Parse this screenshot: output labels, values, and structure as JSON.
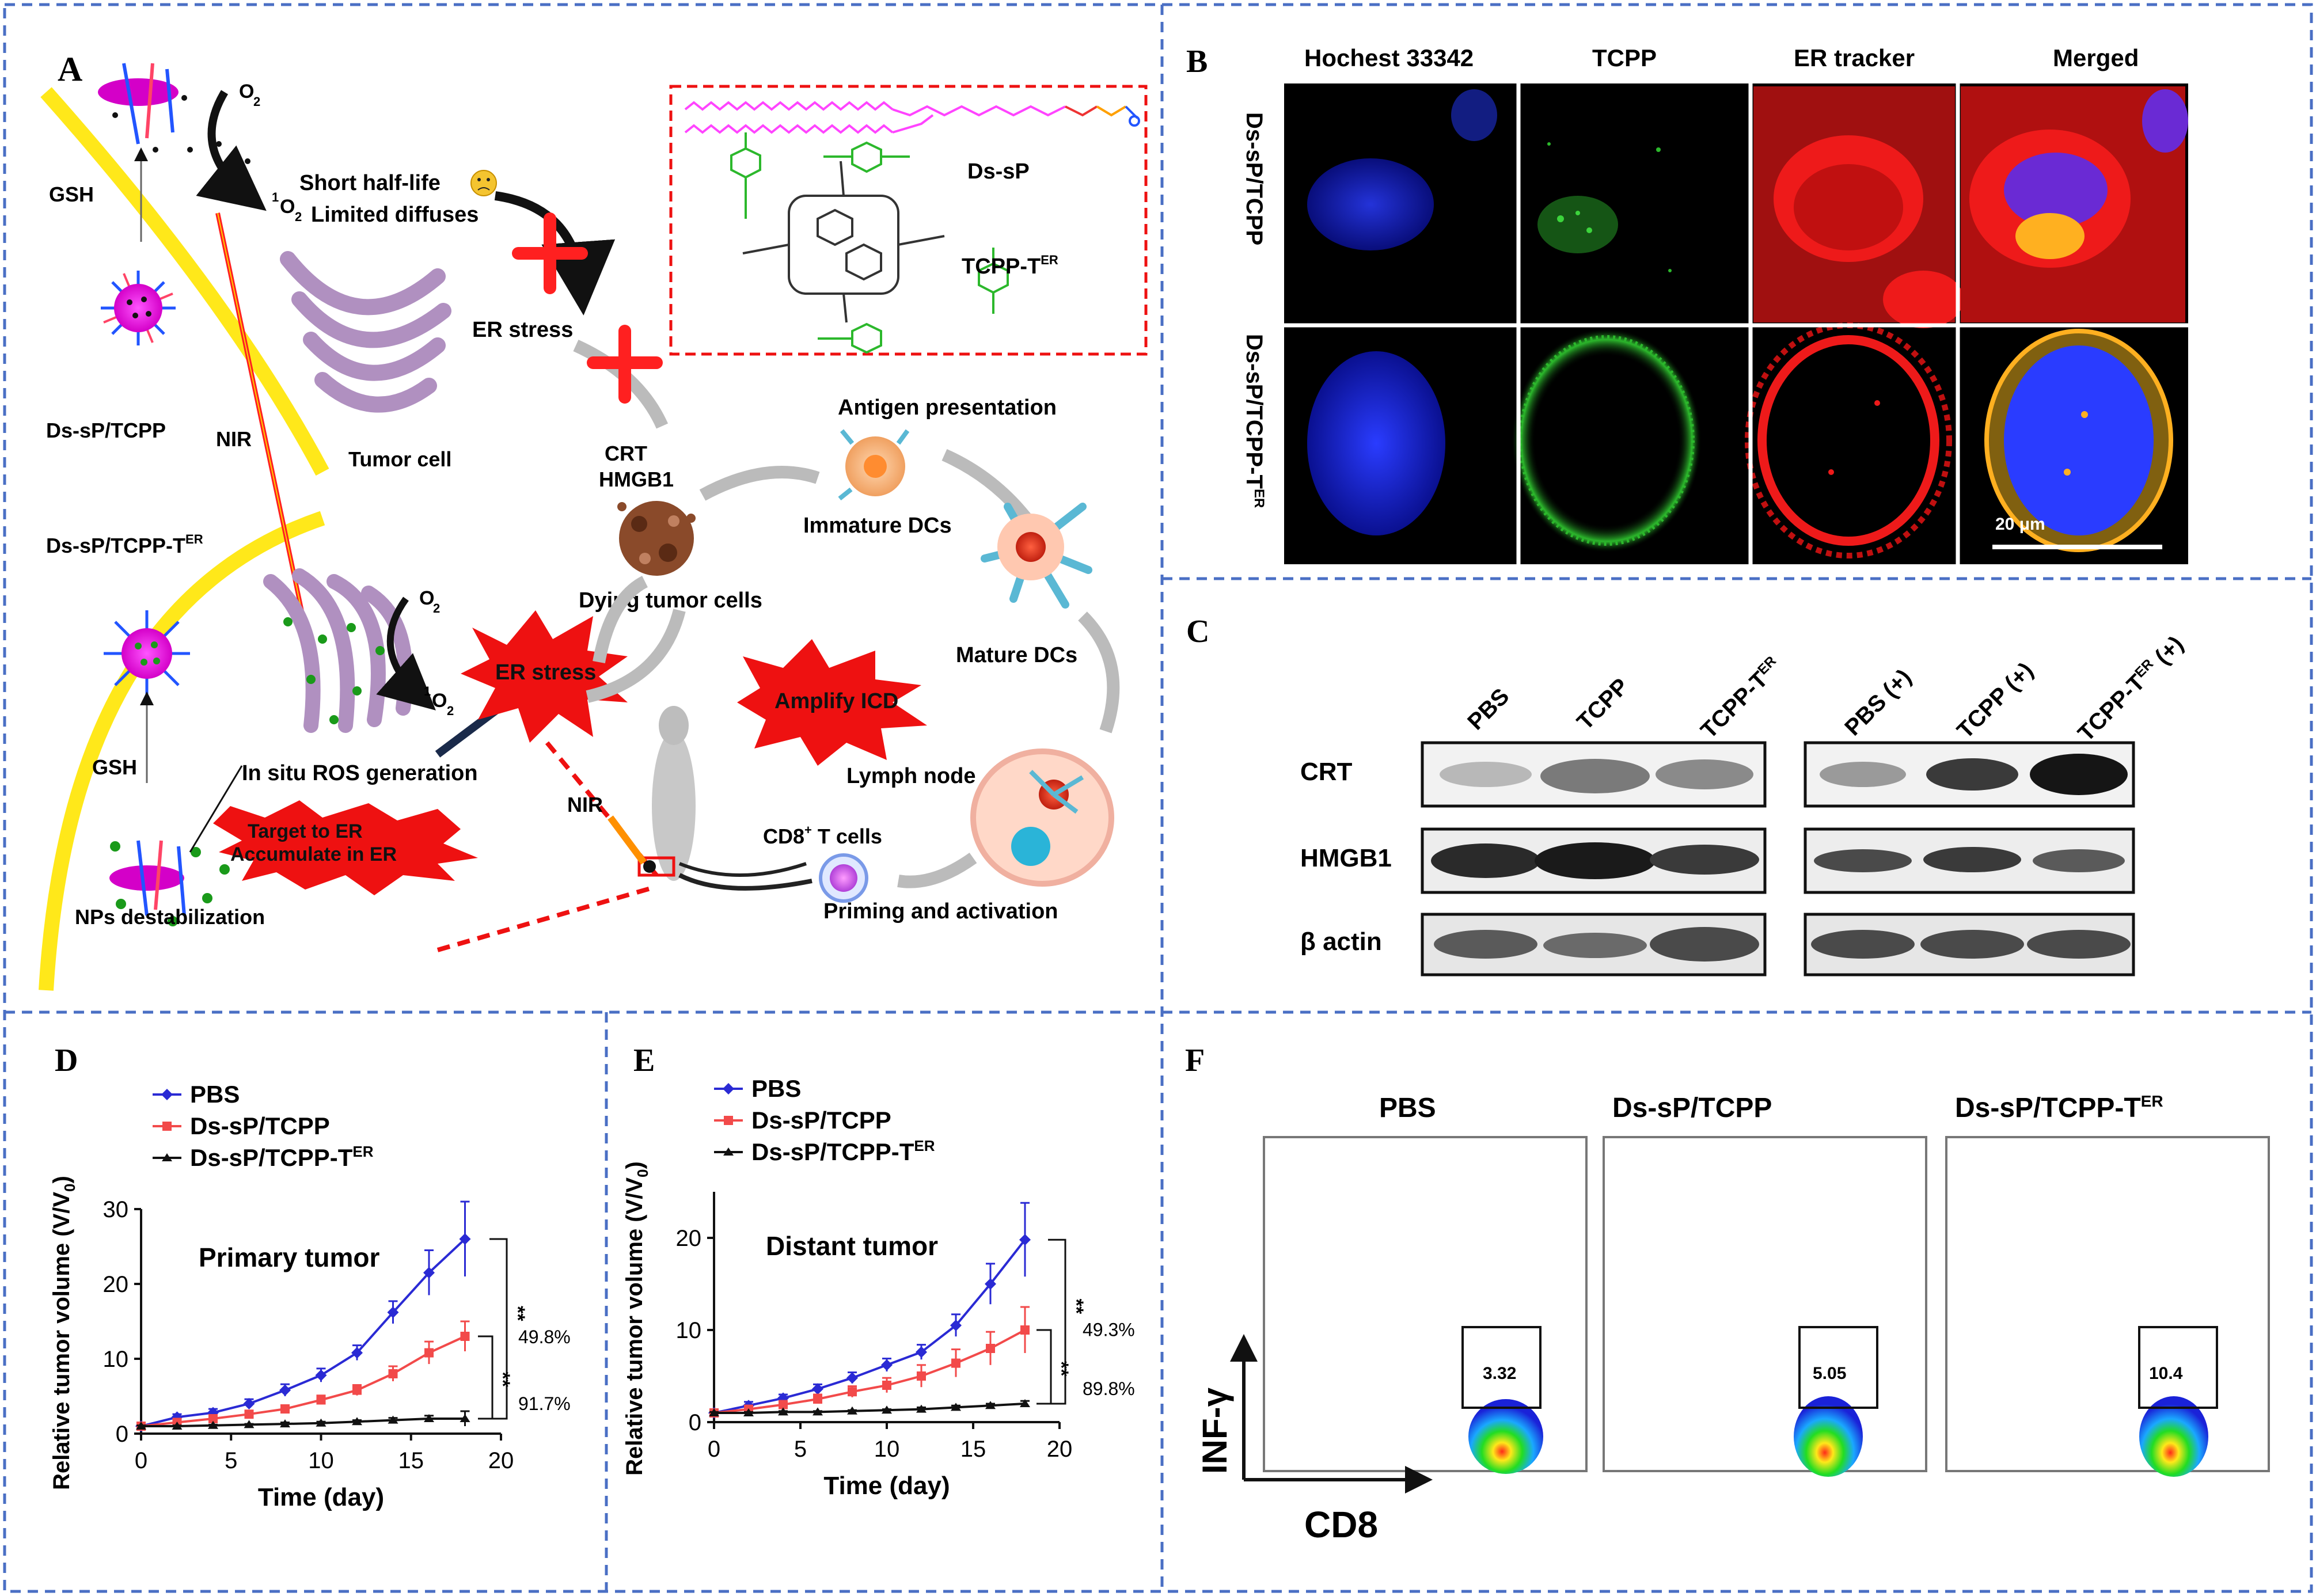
{
  "panel_a": {
    "letter": "A",
    "o2_top": "O",
    "o2_top_sub": "2",
    "singlet_top_sup": "1",
    "singlet_top": "O",
    "singlet_top_sub": "2",
    "short_half_life": "Short half-life",
    "limited_diffuses": "Limited diffuses",
    "gsh_top": "GSH",
    "ds_sp_tcpp": "Ds-sP/TCPP",
    "nir_top": "NIR",
    "tumor_cell": "Tumor cell",
    "er_stress_top": "ER stress",
    "ds_sp_tcpp_ter": "Ds-sP/TCPP-T",
    "ds_sp_tcpp_ter_sup": "ER",
    "o2_mid": "O",
    "o2_mid_sub": "2",
    "singlet_mid_sup": "1",
    "singlet_mid": "O",
    "singlet_mid_sub": "2",
    "gsh_bottom": "GSH",
    "in_situ_ros": "In situ ROS generation",
    "target_to_er": "Target to ER",
    "accumulate_in_er": "Accumulate in ER",
    "nps_destabilization": "NPs destabilization",
    "er_stress_burst": "ER stress",
    "amplify_icd": "Amplify ICD",
    "nir_mouse": "NIR",
    "crt": "CRT",
    "hmgb1": "HMGB1",
    "dying_tumor_cells": "Dying tumor cells",
    "antigen_presentation": "Antigen presentation",
    "immature_dcs": "Immature DCs",
    "mature_dcs": "Mature DCs",
    "lymph_node": "Lymph node",
    "cd8_t_cells": "CD8",
    "cd8_sup": "+",
    "cd8_t_cells_suffix": " T cells",
    "priming_activation": "Priming and activation",
    "inset_ds_sp": "Ds-sP",
    "inset_tcpp_ter": "TCPP-T",
    "inset_tcpp_ter_sup": "ER"
  },
  "panel_b": {
    "letter": "B",
    "columns": [
      "Hochest 33342",
      "TCPP",
      "ER tracker",
      "Merged"
    ],
    "row1": "Ds-sP/TCPP",
    "row2": "Ds-sP/TCPP-T",
    "row2_sup": "ER",
    "scale_bar": "20 μm"
  },
  "panel_c": {
    "letter": "C",
    "lanes": [
      "PBS",
      "TCPP",
      "TCPP-T",
      "PBS (+)",
      "TCPP (+)",
      "TCPP-T"
    ],
    "lane_er_sup": "ER",
    "lane_plus_suffix": " (+)",
    "rows": [
      "CRT",
      "HMGB1",
      "β actin"
    ]
  },
  "panel_f": {
    "letter": "F",
    "titles": [
      "PBS",
      "Ds-sP/TCPP",
      "Ds-sP/TCPP-T"
    ],
    "title_sup": "ER",
    "gate_values": [
      "3.32",
      "5.05",
      "10.4"
    ],
    "y_axis": "INF-γ",
    "x_axis": "CD8"
  },
  "chart_data": [
    {
      "type": "line",
      "panel": "D",
      "title": "Primary tumor",
      "xlabel": "Time (day)",
      "ylabel": "Relative tumor volume (V/V",
      "ylabel_sub": "0",
      "ylabel_close": ")",
      "xlim": [
        0,
        20
      ],
      "ylim": [
        0,
        30
      ],
      "xticks": [
        "0",
        "5",
        "10",
        "15",
        "20"
      ],
      "yticks": [
        "0",
        "10",
        "20",
        "30"
      ],
      "legend": [
        "PBS",
        "Ds-sP/TCPP",
        "Ds-sP/TCPP-T"
      ],
      "legend_sup": "ER",
      "colors": [
        "#2a2ad4",
        "#f24a4a",
        "#111111"
      ],
      "x": [
        0,
        2,
        4,
        6,
        8,
        10,
        12,
        14,
        16,
        18
      ],
      "series": [
        {
          "name": "PBS",
          "values": [
            1.0,
            2.2,
            2.8,
            4.0,
            5.8,
            7.8,
            10.8,
            16.2,
            21.5,
            26.0
          ],
          "errors": [
            0.3,
            0.4,
            0.5,
            0.6,
            0.8,
            0.9,
            1.0,
            1.5,
            3.0,
            5.0
          ]
        },
        {
          "name": "Ds-sP/TCPP",
          "values": [
            1.0,
            1.5,
            2.0,
            2.6,
            3.3,
            4.5,
            5.8,
            8.0,
            10.8,
            13.0
          ],
          "errors": [
            0.2,
            0.3,
            0.3,
            0.4,
            0.5,
            0.6,
            0.7,
            1.0,
            1.5,
            2.0
          ]
        },
        {
          "name": "Ds-sP/TCPP-T",
          "values": [
            1.0,
            1.0,
            1.1,
            1.2,
            1.3,
            1.4,
            1.6,
            1.8,
            2.0,
            2.0
          ],
          "errors": [
            0.1,
            0.1,
            0.1,
            0.1,
            0.2,
            0.2,
            0.2,
            0.3,
            0.4,
            1.0
          ]
        }
      ],
      "significance": [
        "**",
        "**"
      ],
      "percentages": [
        "49.8%",
        "91.7%"
      ]
    },
    {
      "type": "line",
      "panel": "E",
      "title": "Distant tumor",
      "xlabel": "Time (day)",
      "ylabel": "Relative tumor volume (V/V",
      "ylabel_sub": "0",
      "ylabel_close": ")",
      "xlim": [
        0,
        20
      ],
      "ylim": [
        0,
        25
      ],
      "xticks": [
        "0",
        "5",
        "10",
        "15",
        "20"
      ],
      "yticks": [
        "0",
        "10",
        "20"
      ],
      "legend": [
        "PBS",
        "Ds-sP/TCPP",
        "Ds-sP/TCPP-T"
      ],
      "legend_sup": "ER",
      "colors": [
        "#2a2ad4",
        "#f24a4a",
        "#111111"
      ],
      "x": [
        0,
        2,
        4,
        6,
        8,
        10,
        12,
        14,
        16,
        18
      ],
      "series": [
        {
          "name": "PBS",
          "values": [
            1.0,
            1.8,
            2.6,
            3.6,
            4.8,
            6.2,
            7.6,
            10.5,
            15.0,
            19.8
          ],
          "errors": [
            0.3,
            0.4,
            0.4,
            0.5,
            0.6,
            0.7,
            0.8,
            1.2,
            2.2,
            4.0
          ]
        },
        {
          "name": "Ds-sP/TCPP",
          "values": [
            1.0,
            1.4,
            1.9,
            2.5,
            3.3,
            4.0,
            5.0,
            6.4,
            8.0,
            10.0
          ],
          "errors": [
            0.2,
            0.3,
            0.4,
            0.5,
            0.6,
            0.8,
            1.2,
            1.5,
            1.8,
            2.5
          ]
        },
        {
          "name": "Ds-sP/TCPP-T",
          "values": [
            1.0,
            1.0,
            1.1,
            1.1,
            1.2,
            1.3,
            1.4,
            1.6,
            1.8,
            2.0
          ],
          "errors": [
            0.1,
            0.1,
            0.1,
            0.1,
            0.1,
            0.1,
            0.2,
            0.2,
            0.2,
            0.3
          ]
        }
      ],
      "significance": [
        "**",
        "**"
      ],
      "percentages": [
        "49.3%",
        "89.8%"
      ]
    }
  ]
}
